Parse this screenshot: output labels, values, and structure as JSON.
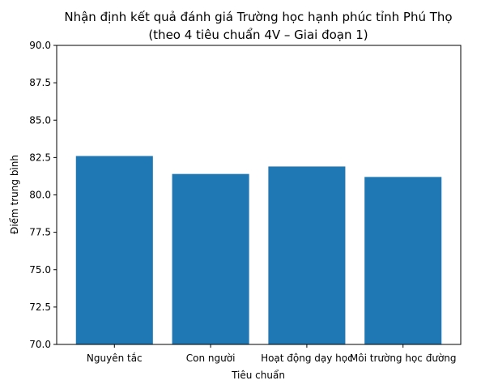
{
  "chart_data": {
    "type": "bar",
    "title_line1": "Nhận định kết quả đánh giá Trường học hạnh phúc tỉnh Phú Thọ",
    "title_line2": "(theo 4 tiêu chuẩn 4V – Giai đoạn 1)",
    "xlabel": "Tiêu chuẩn",
    "ylabel": "Điểm trung bình",
    "categories": [
      "Nguyên tắc",
      "Con người",
      "Hoạt động dạy học",
      "Môi trường học đường"
    ],
    "values": [
      82.6,
      81.4,
      81.9,
      81.2
    ],
    "ylim": [
      70,
      90
    ],
    "yticks": [
      "70.0",
      "72.5",
      "75.0",
      "77.5",
      "80.0",
      "82.5",
      "85.0",
      "87.5",
      "90.0"
    ],
    "bar_color": "#1f77b4",
    "grid": false
  }
}
